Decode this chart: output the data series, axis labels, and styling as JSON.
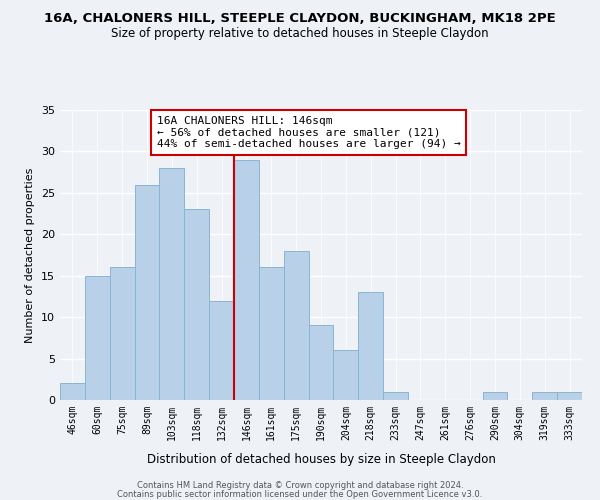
{
  "title1": "16A, CHALONERS HILL, STEEPLE CLAYDON, BUCKINGHAM, MK18 2PE",
  "title2": "Size of property relative to detached houses in Steeple Claydon",
  "xlabel": "Distribution of detached houses by size in Steeple Claydon",
  "ylabel": "Number of detached properties",
  "bar_labels": [
    "46sqm",
    "60sqm",
    "75sqm",
    "89sqm",
    "103sqm",
    "118sqm",
    "132sqm",
    "146sqm",
    "161sqm",
    "175sqm",
    "190sqm",
    "204sqm",
    "218sqm",
    "233sqm",
    "247sqm",
    "261sqm",
    "276sqm",
    "290sqm",
    "304sqm",
    "319sqm",
    "333sqm"
  ],
  "bar_values": [
    2,
    15,
    16,
    26,
    28,
    23,
    12,
    29,
    16,
    18,
    9,
    6,
    13,
    1,
    0,
    0,
    0,
    1,
    0,
    1,
    1
  ],
  "bar_color": "#b8d0e8",
  "bar_edge_color": "#8ab4d4",
  "highlight_index": 7,
  "highlight_line_color": "#cc0000",
  "annotation_title": "16A CHALONERS HILL: 146sqm",
  "annotation_line1": "← 56% of detached houses are smaller (121)",
  "annotation_line2": "44% of semi-detached houses are larger (94) →",
  "annotation_box_color": "#ffffff",
  "annotation_box_edge": "#cc0000",
  "ylim": [
    0,
    35
  ],
  "yticks": [
    0,
    5,
    10,
    15,
    20,
    25,
    30,
    35
  ],
  "background_color": "#eef2f7",
  "footer1": "Contains HM Land Registry data © Crown copyright and database right 2024.",
  "footer2": "Contains public sector information licensed under the Open Government Licence v3.0."
}
